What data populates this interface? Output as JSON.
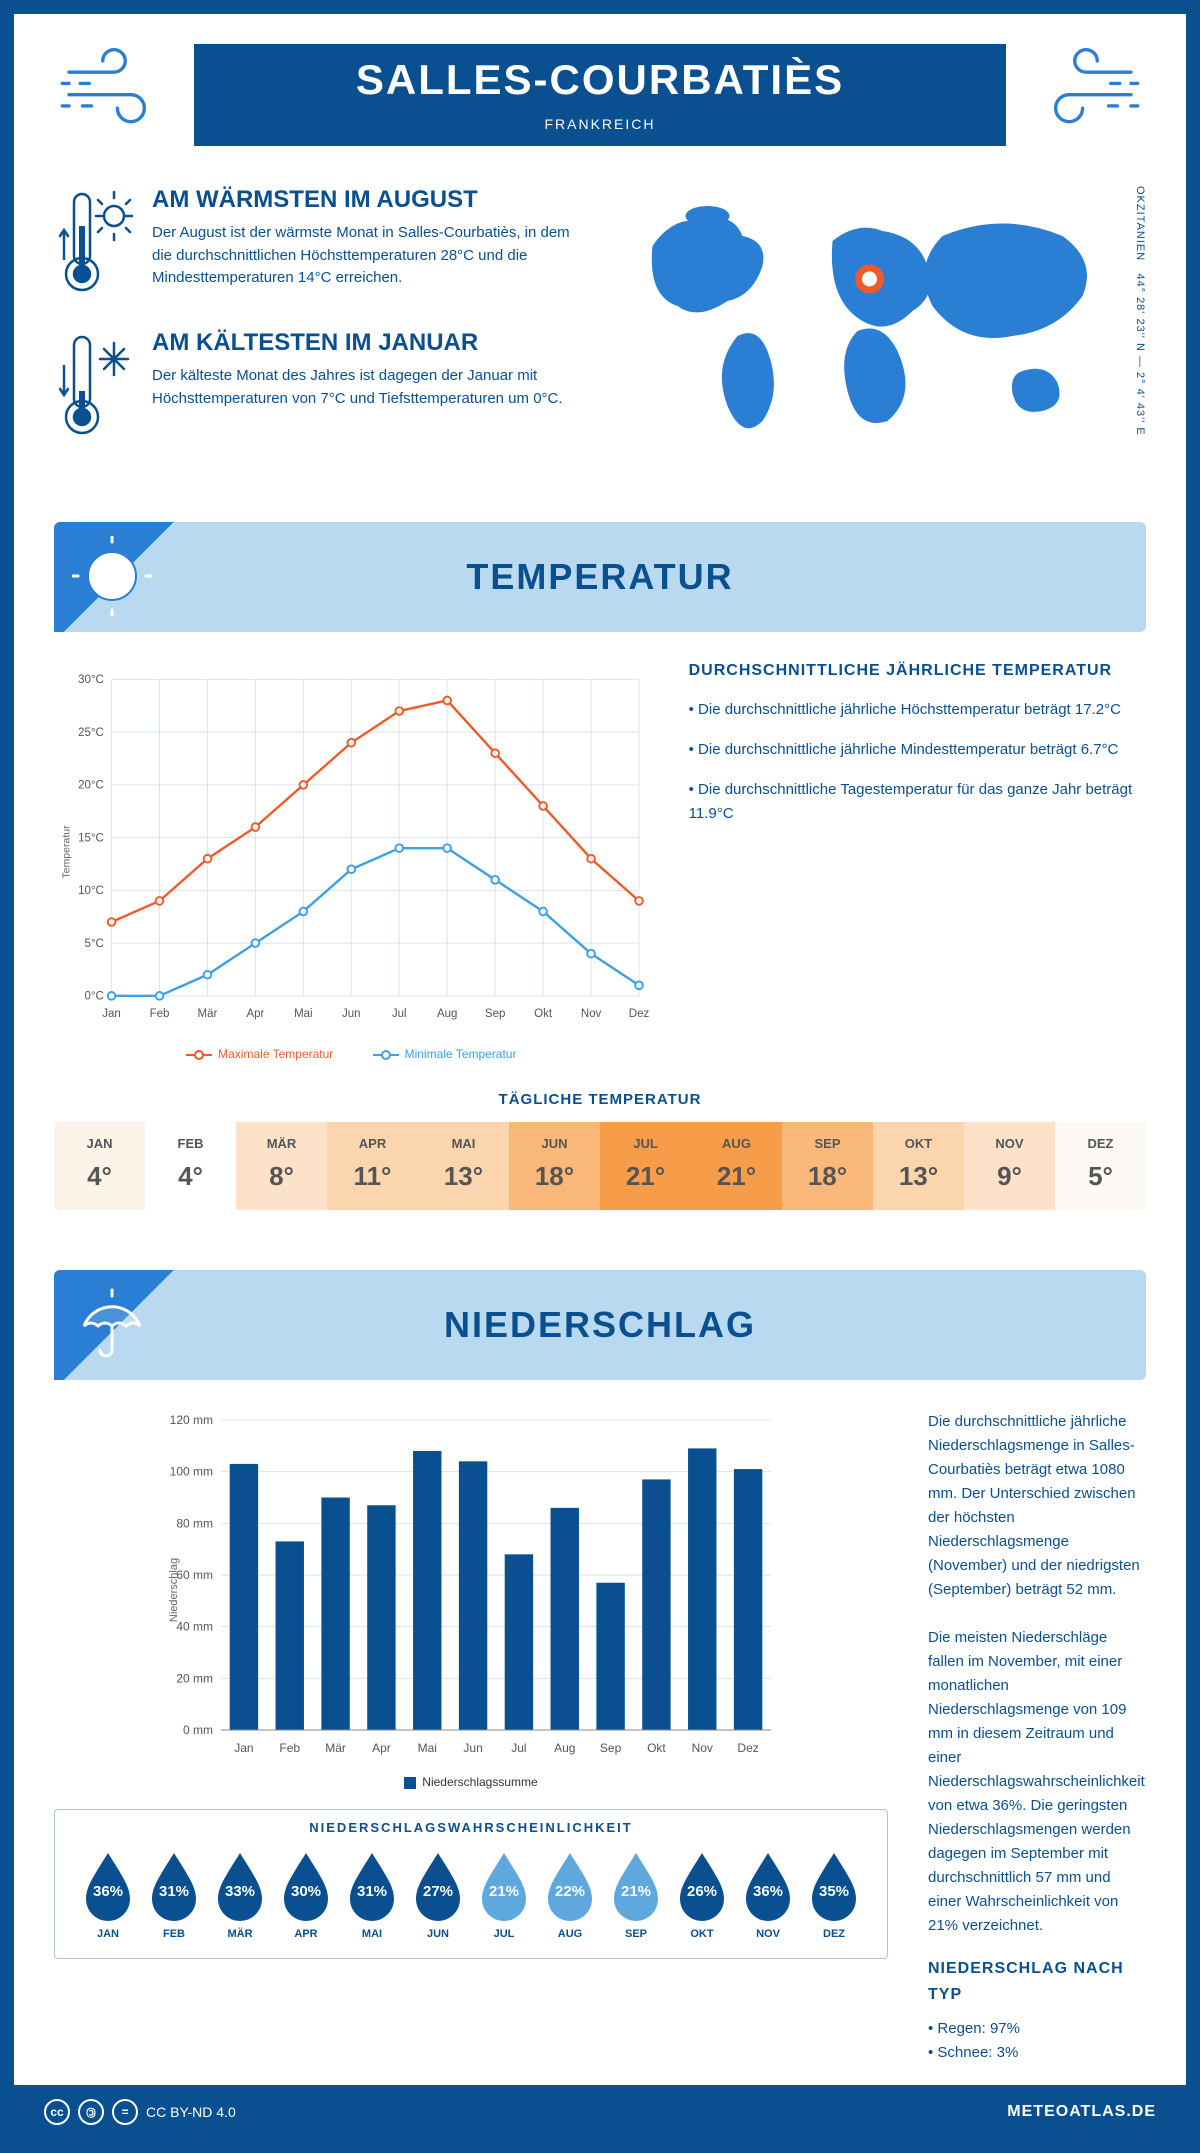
{
  "colors": {
    "primary": "#0a4f8f",
    "accent": "#2a7fd4",
    "banner_bg": "#b8d9f0",
    "grid": "#d6e4ef",
    "max_line": "#f05a28",
    "min_line": "#3aa0e8",
    "bar": "#0a4f8f"
  },
  "header": {
    "title": "SALLES-COURBATIÈS",
    "country": "FRANKREICH"
  },
  "coords": {
    "lat": "44° 28' 23'' N",
    "lon": "2° 4' 43'' E",
    "region": "OKZITANIEN"
  },
  "intro": {
    "warm": {
      "title": "AM WÄRMSTEN IM AUGUST",
      "text": "Der August ist der wärmste Monat in Salles-Courbatiès, in dem die durchschnittlichen Höchsttemperaturen 28°C und die Mindesttemperaturen 14°C erreichen."
    },
    "cold": {
      "title": "AM KÄLTESTEN IM JANUAR",
      "text": "Der kälteste Monat des Jahres ist dagegen der Januar mit Höchsttemperaturen von 7°C und Tiefsttemperaturen um 0°C."
    }
  },
  "sections": {
    "temperature": "TEMPERATUR",
    "precip": "NIEDERSCHLAG"
  },
  "temp_chart": {
    "type": "line",
    "months": [
      "Jan",
      "Feb",
      "Mär",
      "Apr",
      "Mai",
      "Jun",
      "Jul",
      "Aug",
      "Sep",
      "Okt",
      "Nov",
      "Dez"
    ],
    "max": [
      7,
      9,
      13,
      16,
      20,
      24,
      27,
      28,
      23,
      18,
      13,
      9
    ],
    "min": [
      0,
      0,
      2,
      5,
      8,
      12,
      14,
      14,
      11,
      8,
      4,
      1
    ],
    "ylim": [
      0,
      30
    ],
    "ytick_step": 5,
    "legend_max": "Maximale Temperatur",
    "legend_min": "Minimale Temperatur",
    "ylabel": "Temperatur"
  },
  "temp_side": {
    "title": "DURCHSCHNITTLICHE JÄHRLICHE TEMPERATUR",
    "b1": "• Die durchschnittliche jährliche Höchsttemperatur beträgt 17.2°C",
    "b2": "• Die durchschnittliche jährliche Mindesttemperatur beträgt 6.7°C",
    "b3": "• Die durchschnittliche Tagestemperatur für das ganze Jahr beträgt 11.9°C"
  },
  "daily": {
    "title": "TÄGLICHE TEMPERATUR",
    "months": [
      "JAN",
      "FEB",
      "MÄR",
      "APR",
      "MAI",
      "JUN",
      "JUL",
      "AUG",
      "SEP",
      "OKT",
      "NOV",
      "DEZ"
    ],
    "values": [
      4,
      4,
      8,
      11,
      13,
      18,
      21,
      21,
      18,
      13,
      9,
      5
    ],
    "colors": [
      "#fdf3e8",
      "#ffffff",
      "#fce2c8",
      "#fbd5ae",
      "#fbd5ae",
      "#f9b879",
      "#f79d4a",
      "#f79d4a",
      "#f9b879",
      "#fbd5ae",
      "#fce2c8",
      "#fdf9f4"
    ]
  },
  "precip_chart": {
    "type": "bar",
    "months": [
      "Jan",
      "Feb",
      "Mär",
      "Apr",
      "Mai",
      "Jun",
      "Jul",
      "Aug",
      "Sep",
      "Okt",
      "Nov",
      "Dez"
    ],
    "values": [
      103,
      73,
      90,
      87,
      108,
      104,
      68,
      86,
      57,
      97,
      109,
      101
    ],
    "ylim": [
      0,
      120
    ],
    "ytick_step": 20,
    "legend": "Niederschlagssumme",
    "ylabel": "Niederschlag"
  },
  "precip_text": {
    "p1": "Die durchschnittliche jährliche Niederschlagsmenge in Salles-Courbatiès beträgt etwa 1080 mm. Der Unterschied zwischen der höchsten Niederschlagsmenge (November) und der niedrigsten (September) beträgt 52 mm.",
    "p2": "Die meisten Niederschläge fallen im November, mit einer monatlichen Niederschlagsmenge von 109 mm in diesem Zeitraum und einer Niederschlagswahrscheinlichkeit von etwa 36%. Die geringsten Niederschlagsmengen werden dagegen im September mit durchschnittlich 57 mm und einer Wahrscheinlichkeit von 21% verzeichnet.",
    "type_title": "NIEDERSCHLAG NACH TYP",
    "type_rain": "• Regen: 97%",
    "type_snow": "• Schnee: 3%"
  },
  "prob": {
    "title": "NIEDERSCHLAGSWAHRSCHEINLICHKEIT",
    "months": [
      "JAN",
      "FEB",
      "MÄR",
      "APR",
      "MAI",
      "JUN",
      "JUL",
      "AUG",
      "SEP",
      "OKT",
      "NOV",
      "DEZ"
    ],
    "values": [
      36,
      31,
      33,
      30,
      31,
      27,
      21,
      22,
      21,
      26,
      36,
      35
    ],
    "dark_color": "#0a4f8f",
    "light_color": "#5fa8de",
    "light_threshold": 25
  },
  "footer": {
    "license": "CC BY-ND 4.0",
    "brand": "METEOATLAS.DE"
  }
}
